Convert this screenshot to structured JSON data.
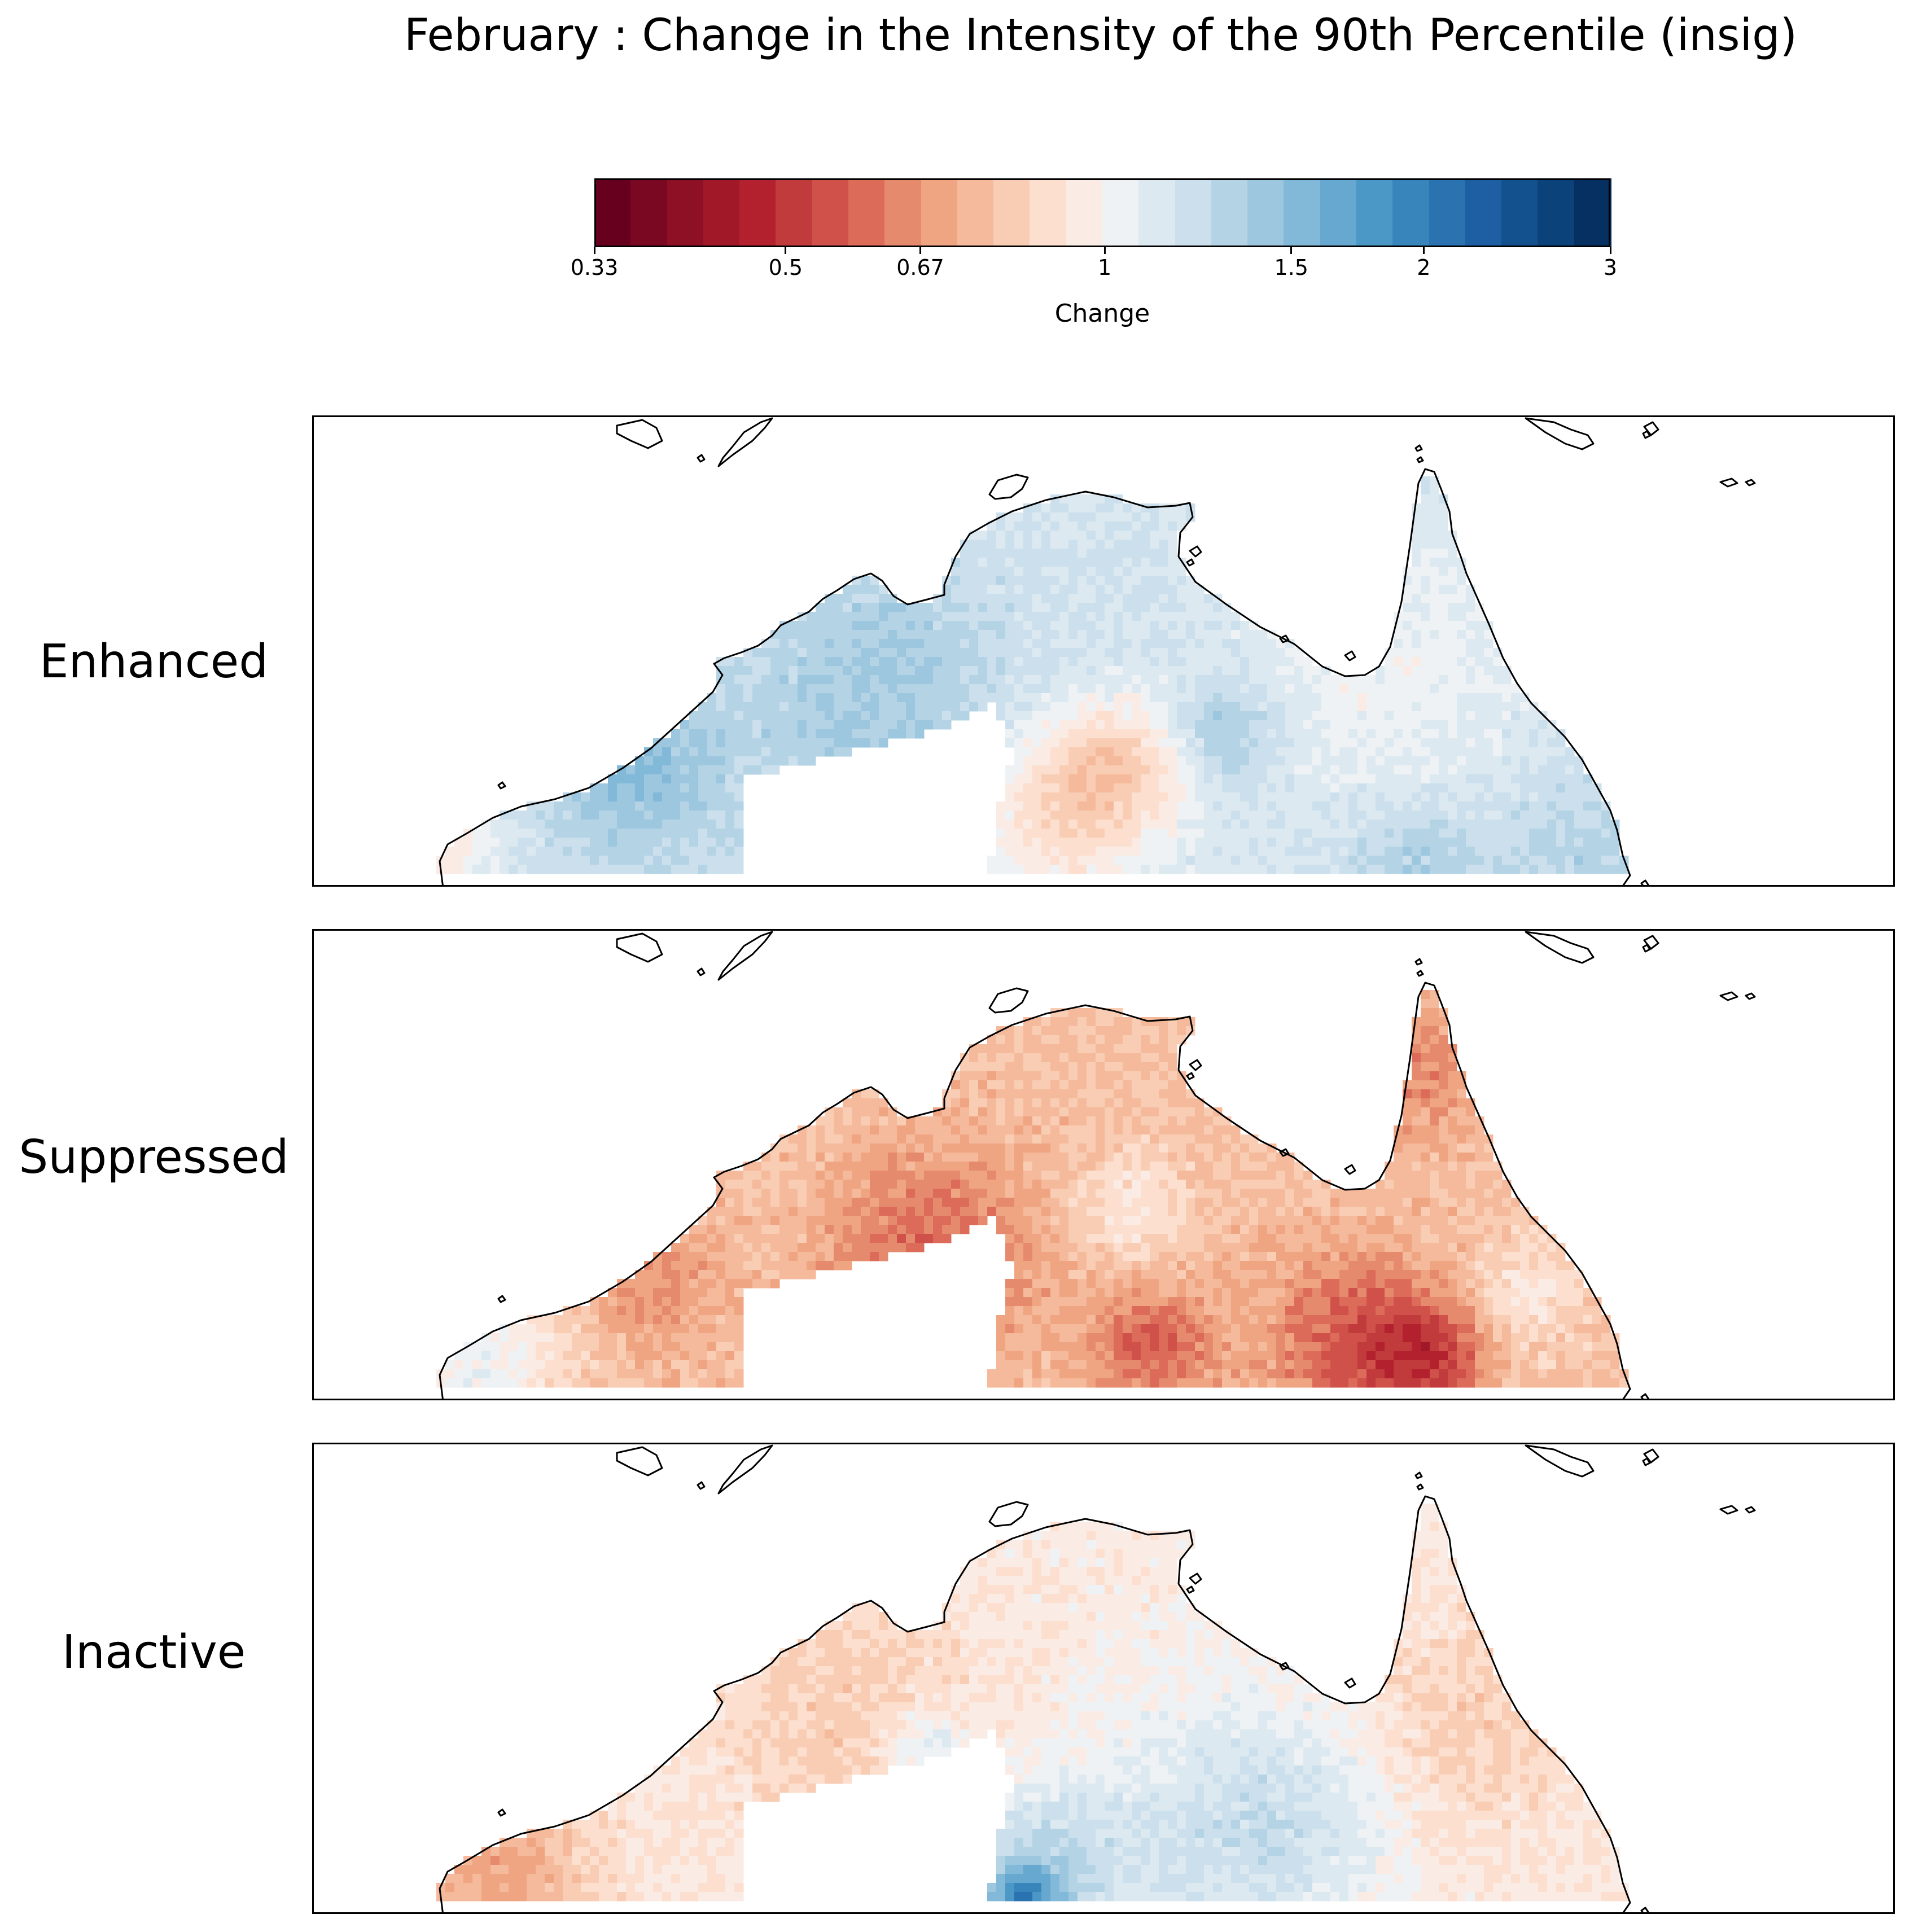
{
  "title": "February : Change in the Intensity of the 90th Percentile (insig)",
  "colorbar": {
    "label": "Change",
    "ticks": [
      "0.33",
      "0.5",
      "0.67",
      "1",
      "1.5",
      "2",
      "3"
    ],
    "tick_values": [
      0.33,
      0.5,
      0.67,
      1,
      1.5,
      2,
      3
    ],
    "scale": "log",
    "range": [
      0.33,
      3
    ],
    "colormap": "RdBu",
    "colors": [
      "#67001f",
      "#7a0822",
      "#8e1025",
      "#a11828",
      "#b2212d",
      "#c13a3c",
      "#d0514a",
      "#dc6b5a",
      "#e68a6e",
      "#efa482",
      "#f5b99b",
      "#f9cdb4",
      "#fcdfcf",
      "#faece5",
      "#eef2f5",
      "#dde9f0",
      "#cbe0ec",
      "#b4d4e6",
      "#9cc7df",
      "#82b8d8",
      "#66a8cf",
      "#4b97c5",
      "#3885bb",
      "#2a72b0",
      "#1d5fa2",
      "#13518e",
      "#0a4279",
      "#053061"
    ]
  },
  "panels": [
    {
      "label": "Enhanced",
      "regime": "enhanced"
    },
    {
      "label": "Suppressed",
      "regime": "suppressed"
    },
    {
      "label": "Inactive",
      "regime": "inactive"
    }
  ]
}
